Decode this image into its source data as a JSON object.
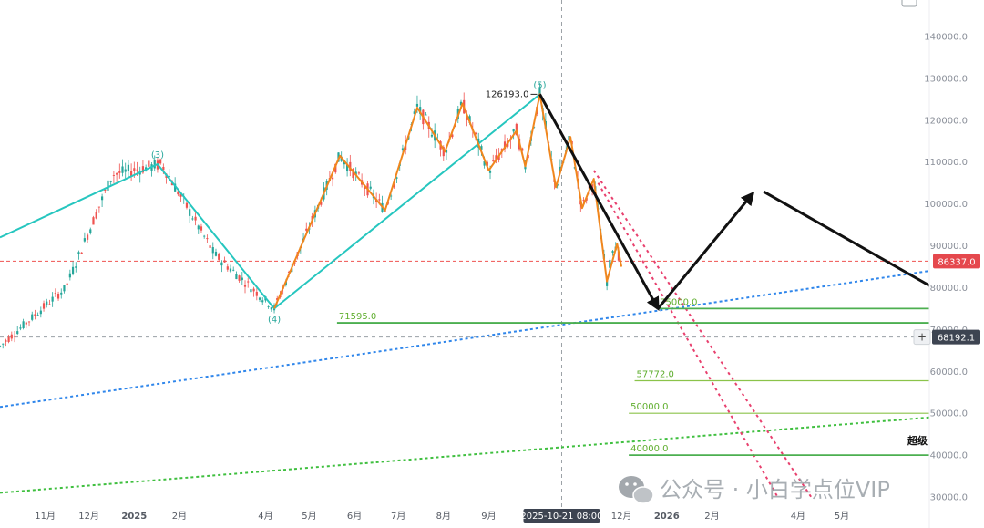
{
  "chart_data": {
    "type": "candlestick",
    "x_start": "2024-10-01",
    "x_end": "2026-06-30",
    "y_axis": {
      "ticks": [
        {
          "value": 140000,
          "label": "140000.0"
        },
        {
          "value": 130000,
          "label": "130000.0"
        },
        {
          "value": 120000,
          "label": "120000.0"
        },
        {
          "value": 110000,
          "label": "110000.0"
        },
        {
          "value": 100000,
          "label": "100000.0"
        },
        {
          "value": 90000,
          "label": "90000.0"
        },
        {
          "value": 80000,
          "label": "80000.0"
        },
        {
          "value": 70000,
          "label": "70000.0"
        },
        {
          "value": 60000,
          "label": "60000.0"
        },
        {
          "value": 50000,
          "label": "50000.0"
        },
        {
          "value": 40000,
          "label": "40000.0"
        },
        {
          "value": 30000,
          "label": "30000.0"
        }
      ]
    },
    "x_axis": {
      "ticks": [
        {
          "date": "2024-11-01",
          "label": "11月",
          "bold": false
        },
        {
          "date": "2024-12-01",
          "label": "12月",
          "bold": false
        },
        {
          "date": "2025-01-01",
          "label": "2025",
          "bold": true
        },
        {
          "date": "2025-02-01",
          "label": "2月",
          "bold": false
        },
        {
          "date": "2025-04-01",
          "label": "4月",
          "bold": false
        },
        {
          "date": "2025-05-01",
          "label": "5月",
          "bold": false
        },
        {
          "date": "2025-06-01",
          "label": "6月",
          "bold": false
        },
        {
          "date": "2025-07-01",
          "label": "7月",
          "bold": false
        },
        {
          "date": "2025-08-01",
          "label": "8月",
          "bold": false
        },
        {
          "date": "2025-09-01",
          "label": "9月",
          "bold": false
        },
        {
          "date": "2025-12-01",
          "label": "12月",
          "bold": false
        },
        {
          "date": "2026-01-01",
          "label": "2026",
          "bold": true
        },
        {
          "date": "2026-02-01",
          "label": "2月",
          "bold": false
        },
        {
          "date": "2026-04-01",
          "label": "4月",
          "bold": false
        },
        {
          "date": "2026-05-01",
          "label": "5月",
          "bold": false
        }
      ]
    },
    "crosshair": {
      "date": "2025-10-21",
      "date_label": "2025-10-21 08:00",
      "price": 68192.1,
      "price_label": "68192.1"
    },
    "current_price": {
      "value": 86337.0,
      "label": "86337.0"
    },
    "price_anchors": [
      {
        "date": "2024-10-01",
        "price": 66000
      },
      {
        "date": "2024-11-15",
        "price": 80000
      },
      {
        "date": "2024-12-17",
        "price": 107000
      },
      {
        "date": "2025-01-20",
        "price": 109500
      },
      {
        "date": "2025-02-25",
        "price": 88000
      },
      {
        "date": "2025-04-07",
        "price": 75000
      },
      {
        "date": "2025-05-22",
        "price": 111500
      },
      {
        "date": "2025-06-22",
        "price": 98500
      },
      {
        "date": "2025-07-14",
        "price": 123000
      },
      {
        "date": "2025-08-02",
        "price": 112500
      },
      {
        "date": "2025-08-14",
        "price": 124000
      },
      {
        "date": "2025-09-01",
        "price": 108000
      },
      {
        "date": "2025-09-20",
        "price": 117500
      },
      {
        "date": "2025-09-26",
        "price": 109000
      },
      {
        "date": "2025-10-06",
        "price": 126193
      },
      {
        "date": "2025-10-17",
        "price": 104000
      },
      {
        "date": "2025-10-27",
        "price": 116000
      },
      {
        "date": "2025-11-04",
        "price": 99000
      },
      {
        "date": "2025-11-12",
        "price": 106000
      },
      {
        "date": "2025-11-21",
        "price": 81500
      },
      {
        "date": "2025-11-26",
        "price": 91500
      },
      {
        "date": "2025-11-30",
        "price": 86337
      }
    ],
    "wave_labels": [
      {
        "date": "2025-01-17",
        "price": 109500,
        "label": "(3)"
      },
      {
        "date": "2025-04-07",
        "price": 75000,
        "label": "(4)"
      },
      {
        "date": "2025-10-06",
        "price": 126193,
        "label": "(5)"
      }
    ],
    "peak_label": {
      "date": "2025-10-06",
      "price": 126193,
      "label": "126193.0"
    },
    "teal_wave": [
      {
        "date": "2024-10-01",
        "price": 92000
      },
      {
        "date": "2025-01-17",
        "price": 109500
      },
      {
        "date": "2025-04-07",
        "price": 75000
      },
      {
        "date": "2025-10-06",
        "price": 126193
      }
    ],
    "orange_wave": [
      {
        "date": "2025-04-07",
        "price": 75000
      },
      {
        "date": "2025-05-22",
        "price": 111500
      },
      {
        "date": "2025-06-22",
        "price": 98500
      },
      {
        "date": "2025-07-14",
        "price": 123000
      },
      {
        "date": "2025-08-02",
        "price": 112500
      },
      {
        "date": "2025-08-14",
        "price": 124000
      },
      {
        "date": "2025-09-01",
        "price": 108000
      },
      {
        "date": "2025-09-20",
        "price": 117500
      },
      {
        "date": "2025-09-26",
        "price": 109000
      },
      {
        "date": "2025-10-06",
        "price": 126193
      },
      {
        "date": "2025-10-17",
        "price": 104000
      },
      {
        "date": "2025-10-27",
        "price": 116000
      },
      {
        "date": "2025-11-04",
        "price": 99000
      },
      {
        "date": "2025-11-12",
        "price": 106000
      },
      {
        "date": "2025-11-21",
        "price": 81500
      },
      {
        "date": "2025-11-28",
        "price": 90500
      },
      {
        "date": "2025-12-01",
        "price": 85000
      }
    ],
    "forecast_path": [
      {
        "date": "2025-10-06",
        "price": 126193
      },
      {
        "date": "2025-12-26",
        "price": 75000
      },
      {
        "date": "2026-03-01",
        "price": 102500
      },
      {
        "date": "2026-06-30",
        "price": 80500
      }
    ],
    "horizontal_levels": [
      {
        "value": 75000,
        "label": "75000.0",
        "from": "2025-12-26",
        "label_at": "2025-12-26",
        "color": "#4caf50",
        "width": 1.8
      },
      {
        "value": 71595,
        "label": "71595.0",
        "from": "2025-05-20",
        "label_at": "2025-05-20",
        "color": "#4caf50",
        "width": 1.8
      },
      {
        "value": 57772,
        "label": "57772.0",
        "from": "2025-12-10",
        "label_at": "2025-12-10",
        "color": "#8bc34a",
        "width": 1.2
      },
      {
        "value": 50000,
        "label": "50000.0",
        "from": "2025-12-06",
        "label_at": "2025-12-06",
        "color": "#8bc34a",
        "width": 1.2
      },
      {
        "value": 40000,
        "label": "40000.0",
        "from": "2025-12-06",
        "label_at": "2025-12-06",
        "color": "#4caf50",
        "width": 1.8
      }
    ],
    "blue_trendline": {
      "from": {
        "date": "2024-10-01",
        "price": 51500
      },
      "to": {
        "date": "2026-06-30",
        "price": 84000
      }
    },
    "green_trendline": {
      "from": {
        "date": "2024-10-01",
        "price": 31000
      },
      "to": {
        "date": "2026-06-30",
        "price": 49000
      }
    },
    "red_channel": [
      {
        "from": {
          "date": "2025-11-15",
          "price": 105000
        },
        "to": {
          "date": "2026-03-18",
          "price": 30000
        }
      },
      {
        "from": {
          "date": "2025-11-12",
          "price": 108000
        },
        "to": {
          "date": "2026-04-10",
          "price": 30000
        }
      }
    ],
    "annotation_text": "超级",
    "annotation_anchor": {
      "date": "2026-06-20",
      "price": 43500
    }
  },
  "colors": {
    "up": "#26a69a",
    "down": "#ef5350",
    "teal_wave": "#26c6bf",
    "orange_wave": "#f0861d",
    "forecast": "#111111",
    "blue_trend": "#2f86eb",
    "green_trend": "#3fbf3f",
    "red_channel": "#e8406e",
    "current_price_badge": "#e5484d",
    "crosshair_badge": "#3d4451"
  },
  "watermark": {
    "text": "公众号 · 小白学点位VIP",
    "icon": "wechat-icon"
  }
}
